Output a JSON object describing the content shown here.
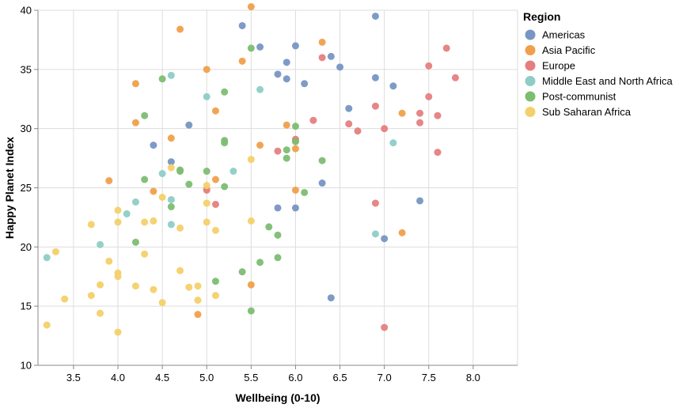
{
  "chart_data": {
    "type": "scatter",
    "xlabel": "Wellbeing (0-10)",
    "ylabel": "Happy Planet Index",
    "xlim": [
      3.1,
      8.5
    ],
    "ylim": [
      10,
      40
    ],
    "x_ticks": [
      "3.5",
      "4.0",
      "4.5",
      "5.0",
      "5.5",
      "6.0",
      "6.5",
      "7.0",
      "7.5",
      "8.0"
    ],
    "y_ticks": [
      "10",
      "15",
      "20",
      "25",
      "30",
      "35",
      "40"
    ],
    "grid": true,
    "legend": {
      "title": "Region",
      "placement": "right"
    },
    "series": [
      {
        "name": "Americas",
        "color": "#7796c3",
        "points": [
          [
            5.4,
            38.7
          ],
          [
            5.6,
            36.9
          ],
          [
            6.0,
            37.0
          ],
          [
            5.9,
            35.6
          ],
          [
            6.4,
            36.1
          ],
          [
            6.5,
            35.2
          ],
          [
            5.8,
            34.6
          ],
          [
            5.9,
            34.2
          ],
          [
            6.1,
            33.8
          ],
          [
            6.9,
            39.5
          ],
          [
            6.9,
            34.3
          ],
          [
            7.1,
            33.6
          ],
          [
            6.6,
            31.7
          ],
          [
            4.8,
            30.3
          ],
          [
            4.4,
            28.6
          ],
          [
            4.6,
            27.2
          ],
          [
            6.3,
            25.4
          ],
          [
            5.8,
            23.3
          ],
          [
            6.0,
            23.3
          ],
          [
            7.4,
            23.9
          ],
          [
            7.0,
            20.7
          ],
          [
            6.4,
            15.7
          ]
        ]
      },
      {
        "name": "Asia Pacific",
        "color": "#f0a04b",
        "points": [
          [
            5.5,
            40.3
          ],
          [
            4.7,
            38.4
          ],
          [
            6.3,
            37.3
          ],
          [
            5.4,
            35.7
          ],
          [
            5.0,
            35.0
          ],
          [
            4.2,
            33.8
          ],
          [
            5.1,
            31.5
          ],
          [
            7.2,
            31.3
          ],
          [
            4.2,
            30.5
          ],
          [
            5.9,
            30.3
          ],
          [
            4.6,
            29.2
          ],
          [
            5.6,
            28.6
          ],
          [
            6.0,
            29.0
          ],
          [
            6.0,
            28.3
          ],
          [
            3.9,
            25.6
          ],
          [
            5.1,
            25.7
          ],
          [
            5.0,
            24.9
          ],
          [
            4.4,
            24.7
          ],
          [
            6.0,
            24.8
          ],
          [
            7.2,
            21.2
          ],
          [
            5.5,
            16.8
          ],
          [
            4.9,
            14.3
          ]
        ]
      },
      {
        "name": "Europe",
        "color": "#e57f7f",
        "points": [
          [
            7.7,
            36.8
          ],
          [
            6.3,
            36.0
          ],
          [
            7.5,
            35.3
          ],
          [
            7.8,
            34.3
          ],
          [
            7.5,
            32.7
          ],
          [
            6.9,
            31.9
          ],
          [
            7.4,
            31.3
          ],
          [
            7.6,
            31.1
          ],
          [
            6.2,
            30.7
          ],
          [
            6.6,
            30.4
          ],
          [
            7.4,
            30.5
          ],
          [
            7.0,
            30.0
          ],
          [
            6.7,
            29.8
          ],
          [
            6.0,
            29.1
          ],
          [
            5.8,
            28.1
          ],
          [
            7.6,
            28.0
          ],
          [
            5.0,
            24.8
          ],
          [
            5.1,
            23.6
          ],
          [
            6.9,
            23.7
          ],
          [
            7.0,
            13.2
          ]
        ]
      },
      {
        "name": "Middle East and North Africa",
        "color": "#8ecdc6",
        "points": [
          [
            4.6,
            34.5
          ],
          [
            5.0,
            32.7
          ],
          [
            5.6,
            33.3
          ],
          [
            7.1,
            28.8
          ],
          [
            4.5,
            26.2
          ],
          [
            5.3,
            26.4
          ],
          [
            4.6,
            24.0
          ],
          [
            4.2,
            23.8
          ],
          [
            4.1,
            22.8
          ],
          [
            4.6,
            21.9
          ],
          [
            6.9,
            21.1
          ],
          [
            3.8,
            20.2
          ],
          [
            3.2,
            19.1
          ]
        ]
      },
      {
        "name": "Post-communist",
        "color": "#7dbd72",
        "points": [
          [
            5.5,
            36.8
          ],
          [
            4.5,
            34.2
          ],
          [
            5.2,
            33.1
          ],
          [
            4.3,
            31.1
          ],
          [
            5.2,
            29.0
          ],
          [
            5.2,
            28.8
          ],
          [
            5.9,
            28.2
          ],
          [
            6.0,
            30.2
          ],
          [
            6.0,
            28.9
          ],
          [
            5.9,
            27.5
          ],
          [
            6.3,
            27.3
          ],
          [
            4.7,
            26.5
          ],
          [
            4.7,
            26.4
          ],
          [
            5.0,
            26.4
          ],
          [
            4.3,
            25.7
          ],
          [
            4.8,
            25.3
          ],
          [
            5.2,
            25.1
          ],
          [
            6.1,
            24.6
          ],
          [
            4.6,
            23.4
          ],
          [
            5.7,
            21.7
          ],
          [
            5.8,
            21.0
          ],
          [
            4.2,
            20.4
          ],
          [
            5.8,
            19.1
          ],
          [
            5.6,
            18.7
          ],
          [
            5.4,
            17.9
          ],
          [
            5.1,
            17.1
          ],
          [
            5.5,
            14.6
          ]
        ]
      },
      {
        "name": "Sub Saharan Africa",
        "color": "#f4d06a",
        "points": [
          [
            5.5,
            27.4
          ],
          [
            4.6,
            26.7
          ],
          [
            5.0,
            25.2
          ],
          [
            4.5,
            24.2
          ],
          [
            5.0,
            23.7
          ],
          [
            4.0,
            23.1
          ],
          [
            4.4,
            22.2
          ],
          [
            4.3,
            22.1
          ],
          [
            4.0,
            22.1
          ],
          [
            5.0,
            22.1
          ],
          [
            5.5,
            22.2
          ],
          [
            3.7,
            21.9
          ],
          [
            4.7,
            21.6
          ],
          [
            5.1,
            21.4
          ],
          [
            3.3,
            19.6
          ],
          [
            4.3,
            19.4
          ],
          [
            3.9,
            18.8
          ],
          [
            4.7,
            18.0
          ],
          [
            4.0,
            17.8
          ],
          [
            4.0,
            17.5
          ],
          [
            3.8,
            16.8
          ],
          [
            4.2,
            16.7
          ],
          [
            4.8,
            16.6
          ],
          [
            4.9,
            16.7
          ],
          [
            4.4,
            16.4
          ],
          [
            3.7,
            15.9
          ],
          [
            5.1,
            15.9
          ],
          [
            3.4,
            15.6
          ],
          [
            4.9,
            15.5
          ],
          [
            4.5,
            15.3
          ],
          [
            3.8,
            14.4
          ],
          [
            3.2,
            13.4
          ],
          [
            4.0,
            12.8
          ]
        ]
      }
    ]
  }
}
